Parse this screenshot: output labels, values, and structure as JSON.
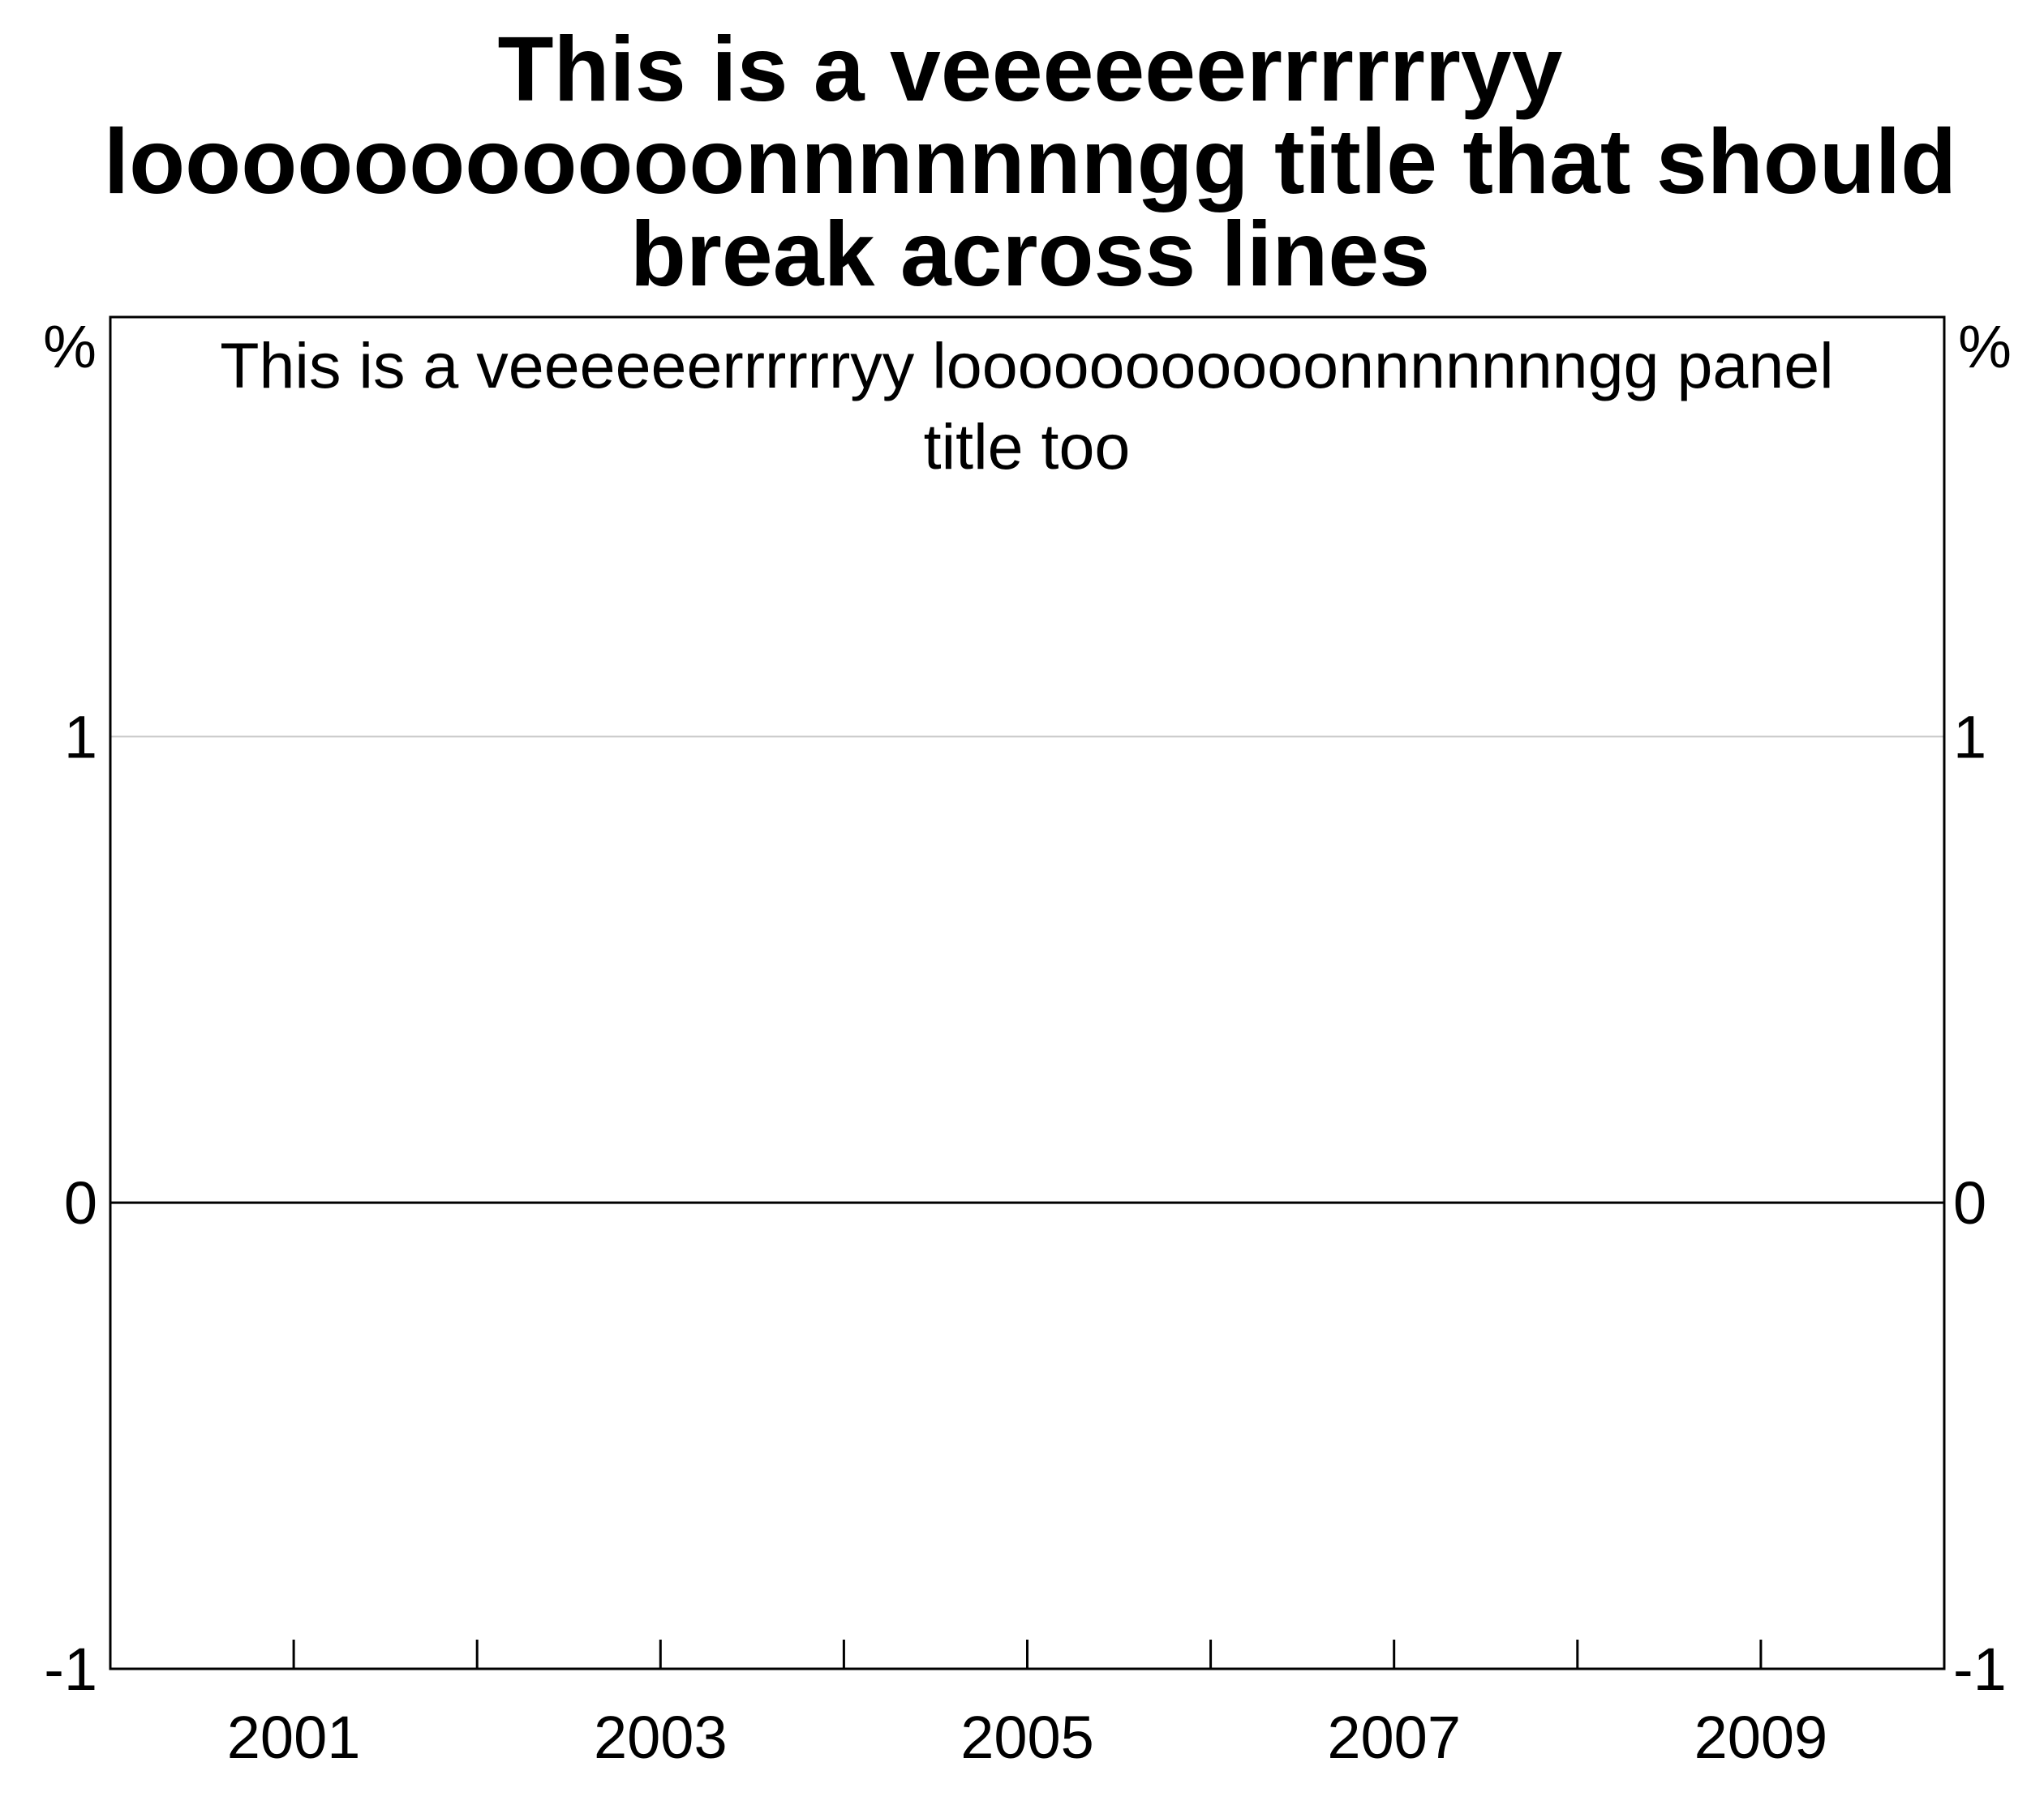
{
  "chart_data": {
    "type": "line",
    "title_lines": [
      "This is a veeeeeerrrrrryy",
      "looooooooooonnnnnnngg title that should",
      "break across lines"
    ],
    "panel_title_lines": [
      "This is a veeeeeerrrrrryy looooooooooonnnnnnngg panel",
      "title too"
    ],
    "ylabel_left": "%",
    "ylabel_right": "%",
    "ylim": [
      -1,
      1.9
    ],
    "yticks": [
      -1,
      0,
      1
    ],
    "ytick_labels": [
      "-1",
      "0",
      "1"
    ],
    "xlim": [
      2000,
      2010
    ],
    "xticks_minor": [
      2001,
      2002,
      2003,
      2004,
      2005,
      2006,
      2007,
      2008,
      2009
    ],
    "xtick_labels": [
      {
        "value": 2001,
        "label": "2001"
      },
      {
        "value": 2003,
        "label": "2003"
      },
      {
        "value": 2005,
        "label": "2005"
      },
      {
        "value": 2007,
        "label": "2007"
      },
      {
        "value": 2009,
        "label": "2009"
      }
    ],
    "grid": true,
    "zero_line": true,
    "series": []
  },
  "colors": {
    "axis": "#000000",
    "grid": "#c8c8c8",
    "background": "#ffffff"
  }
}
